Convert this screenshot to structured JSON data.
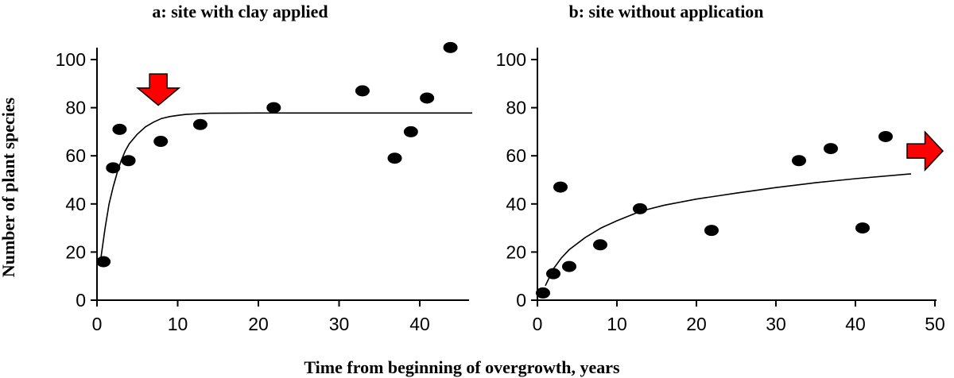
{
  "shared": {
    "ylabel": "Number of plant species",
    "xlabel": "Time from beginning of overgrowth, years"
  },
  "chart_data": [
    {
      "type": "scatter",
      "title": "a: site with clay applied",
      "xlim": [
        0,
        47
      ],
      "ylim": [
        0,
        100
      ],
      "xticks": [
        0,
        10,
        20,
        30,
        40
      ],
      "yticks": [
        0,
        20,
        40,
        60,
        80,
        100
      ],
      "points": [
        {
          "x": 0.8,
          "y": 16
        },
        {
          "x": 2,
          "y": 55
        },
        {
          "x": 2.8,
          "y": 71
        },
        {
          "x": 3.9,
          "y": 58
        },
        {
          "x": 7.9,
          "y": 66
        },
        {
          "x": 12.8,
          "y": 73
        },
        {
          "x": 21.9,
          "y": 80
        },
        {
          "x": 32.9,
          "y": 87
        },
        {
          "x": 36.9,
          "y": 59
        },
        {
          "x": 38.9,
          "y": 70
        },
        {
          "x": 40.9,
          "y": 84
        },
        {
          "x": 43.8,
          "y": 105
        }
      ],
      "fit_curve": {
        "x": [
          0.5,
          1,
          1.5,
          2,
          2.5,
          3,
          3.5,
          4,
          5,
          6,
          7,
          8,
          9,
          10,
          11,
          12,
          14,
          20,
          30,
          40,
          46.5
        ],
        "y": [
          18,
          30,
          40,
          47,
          53,
          58,
          62,
          65,
          69,
          72,
          74,
          75.5,
          76.3,
          76.8,
          77.2,
          77.4,
          77.7,
          77.8,
          77.8,
          77.8,
          77.8
        ]
      },
      "arrow": {
        "direction": "down",
        "x": 7.6,
        "y_top": 94,
        "y_tip": 81,
        "color": "#ff0000"
      }
    },
    {
      "type": "scatter",
      "title": "b: site without application",
      "xlim": [
        0,
        50
      ],
      "ylim": [
        0,
        100
      ],
      "xticks": [
        0,
        10,
        20,
        30,
        40,
        50
      ],
      "yticks": [
        0,
        20,
        40,
        60,
        80,
        100
      ],
      "points": [
        {
          "x": 0.7,
          "y": 3
        },
        {
          "x": 2,
          "y": 11
        },
        {
          "x": 2.9,
          "y": 47
        },
        {
          "x": 4,
          "y": 14
        },
        {
          "x": 7.9,
          "y": 23
        },
        {
          "x": 12.9,
          "y": 38
        },
        {
          "x": 21.9,
          "y": 29
        },
        {
          "x": 32.9,
          "y": 58
        },
        {
          "x": 36.9,
          "y": 63
        },
        {
          "x": 40.9,
          "y": 30
        },
        {
          "x": 43.8,
          "y": 68
        }
      ],
      "fit_curve": {
        "x": [
          1,
          2,
          3,
          4,
          6,
          8,
          10,
          13,
          16,
          20,
          25,
          30,
          35,
          40,
          47
        ],
        "y": [
          6,
          13,
          17.5,
          21,
          26,
          30,
          33,
          37,
          39.5,
          42,
          44.5,
          46.8,
          48.8,
          50.5,
          52.5
        ]
      },
      "arrow": {
        "direction": "right",
        "x_left": 46.5,
        "x_tip": 51,
        "y": 62,
        "color": "#ff0000"
      }
    }
  ]
}
